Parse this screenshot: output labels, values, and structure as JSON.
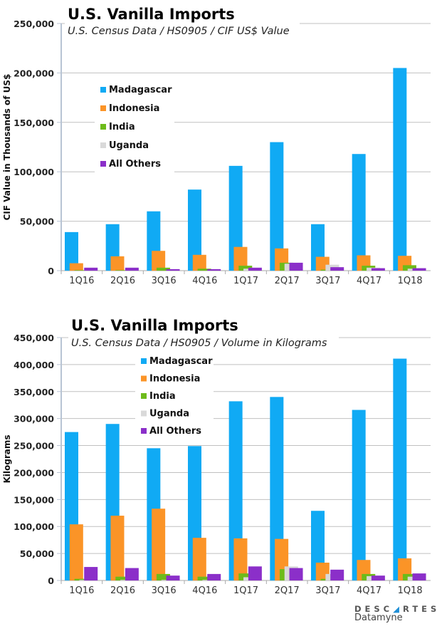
{
  "colors": {
    "Madagascar": "#10aaf4",
    "Indonesia": "#fb9427",
    "India": "#6dbb1a",
    "Uganda": "#d9d9d9",
    "All Others": "#8b2fc9",
    "grid": "#c0c0c0",
    "axis": "#b8c4d4"
  },
  "logo": {
    "line1": "DESCARTES",
    "line2": "Datamyne"
  },
  "chart_data": [
    {
      "type": "bar",
      "title": "U.S. Vanilla Imports",
      "subtitle": "U.S. Census Data / HS0905 / CIF US$ Value",
      "ylabel": "CIF Value in Thousands of US$",
      "xlabel": "",
      "ylim": [
        0,
        250000
      ],
      "yticks": [
        0,
        50000,
        100000,
        150000,
        200000,
        250000
      ],
      "ytick_labels": [
        "0",
        "50,000",
        "100,000",
        "150,000",
        "200,000",
        "250,000"
      ],
      "grid": true,
      "legend": "upper-left",
      "categories": [
        "1Q16",
        "2Q16",
        "3Q16",
        "4Q16",
        "1Q17",
        "2Q17",
        "3Q17",
        "4Q17",
        "1Q18"
      ],
      "series": [
        {
          "name": "Madagascar",
          "values": [
            39000,
            47000,
            60000,
            82000,
            106000,
            130000,
            47000,
            118000,
            205000
          ]
        },
        {
          "name": "Indonesia",
          "values": [
            7500,
            14500,
            20000,
            16000,
            24000,
            22500,
            14000,
            15500,
            15000
          ]
        },
        {
          "name": "India",
          "values": [
            500,
            500,
            3000,
            2000,
            5000,
            8000,
            1000,
            5000,
            5500
          ]
        },
        {
          "name": "Uganda",
          "values": [
            0,
            0,
            0,
            0,
            2000,
            7000,
            6000,
            3000,
            2000
          ]
        },
        {
          "name": "All Others",
          "values": [
            3000,
            3000,
            1500,
            1500,
            3000,
            8000,
            3500,
            2500,
            2500
          ]
        }
      ]
    },
    {
      "type": "bar",
      "title": "U.S. Vanilla Imports",
      "subtitle": "U.S. Census Data / HS0905 / Volume in Kilograms",
      "ylabel": "Kilograms",
      "xlabel": "",
      "ylim": [
        0,
        450000
      ],
      "yticks": [
        0,
        50000,
        100000,
        150000,
        200000,
        250000,
        300000,
        350000,
        400000,
        450000
      ],
      "ytick_labels": [
        "0",
        "50,000",
        "100,000",
        "150,000",
        "200,000",
        "250,000",
        "300,000",
        "350,000",
        "400,000",
        "450,000"
      ],
      "grid": true,
      "legend": "upper-left",
      "categories": [
        "1Q16",
        "2Q16",
        "3Q16",
        "4Q16",
        "1Q17",
        "2Q17",
        "3Q17",
        "4Q17",
        "1Q18"
      ],
      "series": [
        {
          "name": "Madagascar",
          "values": [
            275000,
            290000,
            245000,
            249000,
            332000,
            340000,
            129000,
            316000,
            411000
          ]
        },
        {
          "name": "Indonesia",
          "values": [
            104000,
            120000,
            133000,
            79000,
            78000,
            77000,
            33000,
            38000,
            41000
          ]
        },
        {
          "name": "India",
          "values": [
            3000,
            7000,
            12000,
            7000,
            13000,
            21000,
            3000,
            12000,
            12000
          ]
        },
        {
          "name": "Uganda",
          "values": [
            1000,
            1000,
            1000,
            1000,
            6000,
            26000,
            12000,
            8000,
            7000
          ]
        },
        {
          "name": "All Others",
          "values": [
            25000,
            23000,
            9000,
            12000,
            26000,
            23000,
            20000,
            9000,
            13000
          ]
        }
      ]
    }
  ]
}
